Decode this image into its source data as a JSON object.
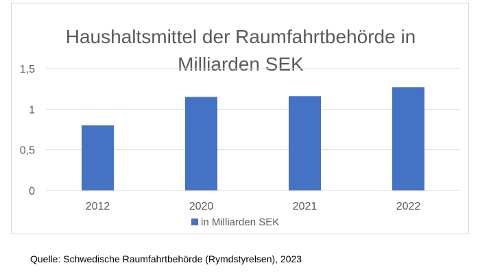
{
  "chart_data": {
    "type": "bar",
    "title_lines": [
      "Haushaltsmittel der Raumfahrtbehörde in",
      "Milliarden SEK"
    ],
    "categories": [
      "2012",
      "2020",
      "2021",
      "2022"
    ],
    "series": [
      {
        "name": "in Milliarden SEK",
        "values": [
          0.8,
          1.15,
          1.16,
          1.27
        ],
        "color": "#4472c4"
      }
    ],
    "y_ticks": [
      0,
      0.5,
      1,
      1.5
    ],
    "y_tick_labels": [
      "0",
      "0,5",
      "1",
      "1,5"
    ],
    "ylim": [
      0,
      1.5
    ],
    "grid": true,
    "gridline_color": "#d9d9d9",
    "legend_position": "bottom",
    "xlabel": "",
    "ylabel": ""
  },
  "source_note": "Quelle: Schwedische Raumfahrtbehörde (Rymdstyrelsen), 2023"
}
